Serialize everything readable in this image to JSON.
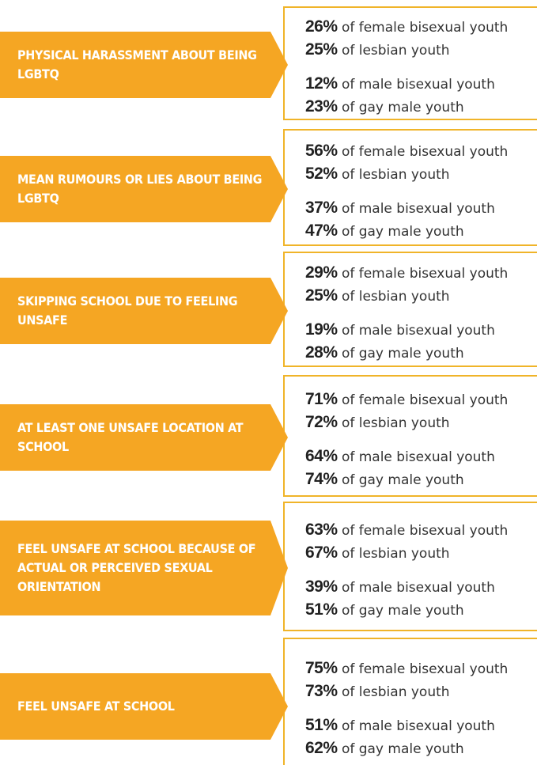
{
  "rows": [
    {
      "label": "Physical harassment about being LGBTQ",
      "items": [
        {
          "value": "26%",
          "text": "of female bisexual youth"
        },
        {
          "value": "25%",
          "text": "of lesbian youth"
        },
        {
          "value": "12%",
          "text": "of male bisexual youth"
        },
        {
          "value": "23%",
          "text": "of gay male youth"
        }
      ]
    },
    {
      "label": "Mean rumours or lies about being LGBTQ",
      "items": [
        {
          "value": "56%",
          "text": "of female bisexual youth"
        },
        {
          "value": "52%",
          "text": "of lesbian youth"
        },
        {
          "value": "37%",
          "text": "of male bisexual youth"
        },
        {
          "value": "47%",
          "text": "of gay male youth"
        }
      ]
    },
    {
      "label": "Skipping school due to feeling unsafe",
      "items": [
        {
          "value": "29%",
          "text": "of female bisexual youth"
        },
        {
          "value": "25%",
          "text": "of lesbian youth"
        },
        {
          "value": "19%",
          "text": "of male bisexual youth"
        },
        {
          "value": "28%",
          "text": "of gay male youth"
        }
      ]
    },
    {
      "label": "At least one unsafe location at school",
      "items": [
        {
          "value": "71%",
          "text": "of female bisexual youth"
        },
        {
          "value": "72%",
          "text": "of lesbian youth"
        },
        {
          "value": "64%",
          "text": "of male bisexual youth"
        },
        {
          "value": "74%",
          "text": "of gay male youth"
        }
      ]
    },
    {
      "label": "Feel unsafe at school because of actual or perceived sexual orientation",
      "items": [
        {
          "value": "63%",
          "text": "of female bisexual youth"
        },
        {
          "value": "67%",
          "text": "of lesbian youth"
        },
        {
          "value": "39%",
          "text": "of male bisexual youth"
        },
        {
          "value": "51%",
          "text": "of gay male youth"
        }
      ]
    },
    {
      "label": "Feel unsafe at school",
      "items": [
        {
          "value": "75%",
          "text": "of female bisexual youth"
        },
        {
          "value": "73%",
          "text": "of lesbian youth"
        },
        {
          "value": "51%",
          "text": "of male bisexual youth"
        },
        {
          "value": "62%",
          "text": "of gay male youth"
        }
      ]
    }
  ]
}
